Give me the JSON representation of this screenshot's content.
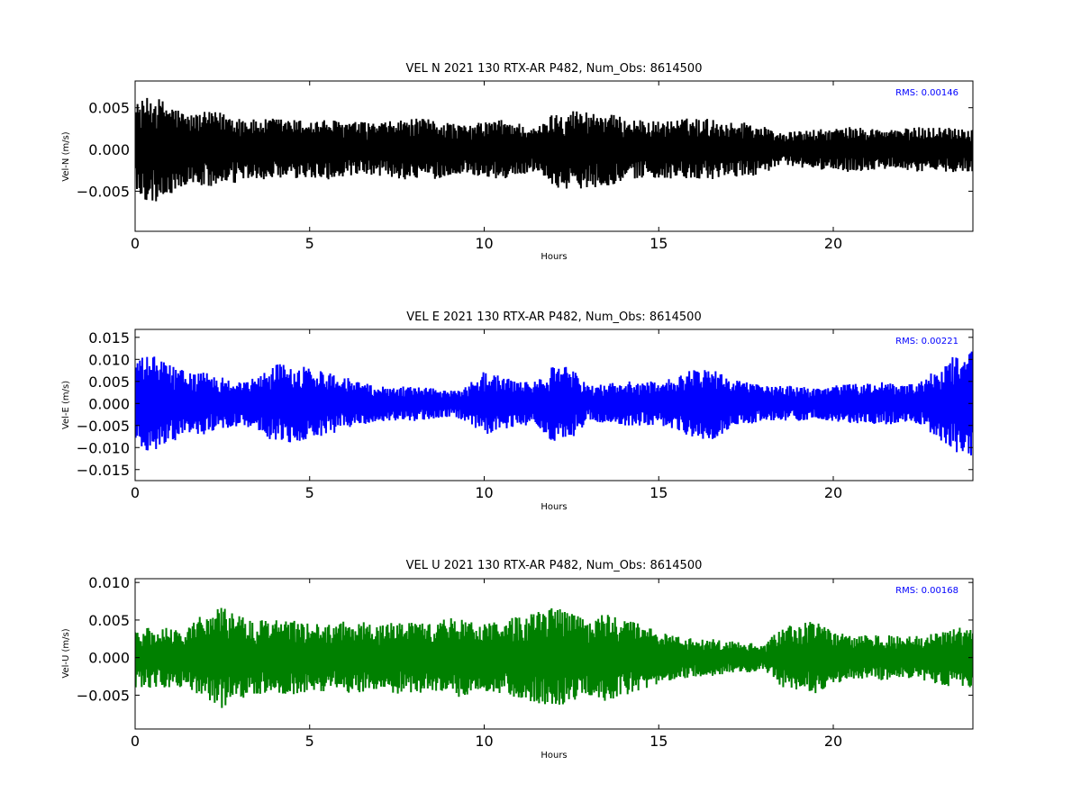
{
  "chart_data": [
    {
      "type": "line",
      "title": "VEL N 2021 130 RTX-AR  P482, Num_Obs: 8614500",
      "xlabel": "Hours",
      "ylabel": "Vel-N (m/s)",
      "color": "#000000",
      "xlim": [
        0,
        24
      ],
      "ylim": [
        -0.0098,
        0.0082
      ],
      "xticks": [
        0,
        5,
        10,
        15,
        20
      ],
      "yticks": [
        -0.005,
        0.0,
        0.005
      ],
      "ytick_labels": [
        "−0.005",
        "0.000",
        "0.005"
      ],
      "annotation": {
        "text": "RMS:  0.00146",
        "color": "#0000ff",
        "position": "top-right"
      },
      "series": [
        {
          "x": [
            0,
            0.5,
            1,
            1.5,
            2,
            2.5,
            3,
            3.5,
            4,
            4.5,
            5,
            5.5,
            6,
            6.5,
            7,
            7.5,
            8,
            8.5,
            9,
            9.5,
            10,
            10.5,
            11,
            11.5,
            12,
            12.5,
            13,
            13.5,
            14,
            14.5,
            15,
            15.5,
            16,
            16.5,
            17,
            17.5,
            18,
            18.5,
            19,
            19.5,
            20,
            20.5,
            21,
            21.5,
            22,
            22.5,
            23,
            23.5,
            24
          ],
          "amp": [
            0.0055,
            0.0065,
            0.0055,
            0.0042,
            0.0045,
            0.0045,
            0.004,
            0.0035,
            0.0038,
            0.0036,
            0.0035,
            0.0036,
            0.0034,
            0.0033,
            0.0032,
            0.0035,
            0.0037,
            0.0036,
            0.0033,
            0.0028,
            0.0034,
            0.0036,
            0.0032,
            0.0025,
            0.0045,
            0.0048,
            0.0046,
            0.0044,
            0.0038,
            0.0035,
            0.0034,
            0.0036,
            0.0038,
            0.0037,
            0.0032,
            0.0034,
            0.0028,
            0.002,
            0.0022,
            0.0024,
            0.0025,
            0.0027,
            0.0026,
            0.0024,
            0.0025,
            0.0027,
            0.0027,
            0.0027,
            0.0026
          ]
        }
      ]
    },
    {
      "type": "line",
      "title": "VEL E 2021 130 RTX-AR  P482, Num_Obs: 8614500",
      "xlabel": "Hours",
      "ylabel": "Vel-E (m/s)",
      "color": "#0000ff",
      "xlim": [
        0,
        24
      ],
      "ylim": [
        -0.0175,
        0.0168
      ],
      "xticks": [
        0,
        5,
        10,
        15,
        20
      ],
      "yticks": [
        -0.015,
        -0.01,
        -0.005,
        0.0,
        0.005,
        0.01,
        0.015
      ],
      "ytick_labels": [
        "−0.015",
        "−0.010",
        "−0.005",
        "0.000",
        "0.005",
        "0.010",
        "0.015"
      ],
      "annotation": {
        "text": "RMS:  0.00221",
        "color": "#0000ff",
        "position": "top-right"
      },
      "series": [
        {
          "x": [
            0,
            0.5,
            1,
            1.5,
            2,
            2.5,
            3,
            3.5,
            4,
            4.5,
            5,
            5.5,
            6,
            6.5,
            7,
            7.5,
            8,
            8.5,
            9,
            9.5,
            10,
            10.5,
            11,
            11.5,
            12,
            12.5,
            13,
            13.5,
            14,
            14.5,
            15,
            15.5,
            16,
            16.5,
            17,
            17.5,
            18,
            18.5,
            19,
            19.5,
            20,
            20.5,
            21,
            21.5,
            22,
            22.5,
            23,
            23.5,
            24
          ],
          "amp": [
            0.01,
            0.011,
            0.009,
            0.007,
            0.007,
            0.006,
            0.005,
            0.006,
            0.009,
            0.009,
            0.008,
            0.0075,
            0.006,
            0.005,
            0.004,
            0.004,
            0.004,
            0.0035,
            0.003,
            0.004,
            0.0075,
            0.006,
            0.005,
            0.005,
            0.009,
            0.008,
            0.004,
            0.0045,
            0.005,
            0.005,
            0.005,
            0.006,
            0.008,
            0.0085,
            0.006,
            0.005,
            0.004,
            0.004,
            0.004,
            0.0035,
            0.004,
            0.0045,
            0.0045,
            0.005,
            0.004,
            0.005,
            0.008,
            0.011,
            0.012
          ]
        }
      ]
    },
    {
      "type": "line",
      "title": "VEL U 2021 130 RTX-AR  P482, Num_Obs: 8614500",
      "xlabel": "Hours",
      "ylabel": "Vel-U (m/s)",
      "color": "#008000",
      "xlim": [
        0,
        24
      ],
      "ylim": [
        -0.0095,
        0.0105
      ],
      "xticks": [
        0,
        5,
        10,
        15,
        20
      ],
      "yticks": [
        -0.005,
        0.0,
        0.005,
        0.01
      ],
      "ytick_labels": [
        "−0.005",
        "0.000",
        "0.005",
        "0.010"
      ],
      "annotation": {
        "text": "RMS:  0.00168",
        "color": "#0000ff",
        "position": "top-right"
      },
      "series": [
        {
          "x": [
            0,
            0.5,
            1,
            1.5,
            2,
            2.5,
            3,
            3.5,
            4,
            4.5,
            5,
            5.5,
            6,
            6.5,
            7,
            7.5,
            8,
            8.5,
            9,
            9.5,
            10,
            10.5,
            11,
            11.5,
            12,
            12.5,
            13,
            13.5,
            14,
            14.5,
            15,
            15.5,
            16,
            16.5,
            17,
            17.5,
            18,
            18.5,
            19,
            19.5,
            20,
            20.5,
            21,
            21.5,
            22,
            22.5,
            23,
            23.5,
            24
          ],
          "amp": [
            0.004,
            0.004,
            0.004,
            0.004,
            0.006,
            0.007,
            0.0055,
            0.005,
            0.005,
            0.005,
            0.0045,
            0.0045,
            0.0048,
            0.0048,
            0.0042,
            0.0048,
            0.005,
            0.0045,
            0.0055,
            0.005,
            0.0045,
            0.005,
            0.0055,
            0.006,
            0.007,
            0.006,
            0.005,
            0.006,
            0.005,
            0.0045,
            0.0035,
            0.003,
            0.0025,
            0.0025,
            0.0022,
            0.002,
            0.0018,
            0.004,
            0.0045,
            0.005,
            0.0035,
            0.003,
            0.003,
            0.003,
            0.0028,
            0.003,
            0.0035,
            0.004,
            0.004
          ]
        }
      ]
    }
  ]
}
